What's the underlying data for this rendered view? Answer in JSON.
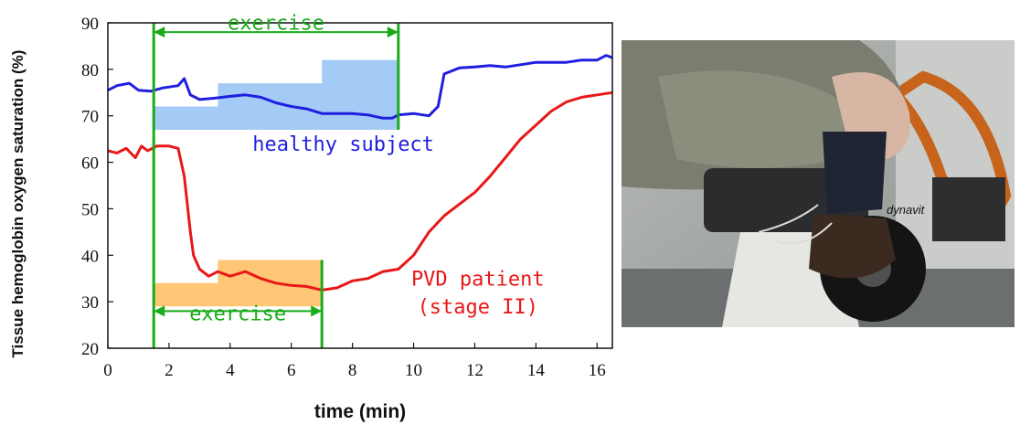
{
  "chart_data": {
    "type": "line",
    "xlabel": "time (min)",
    "ylabel": "Tissue hemoglobin oxygen saturation (%)",
    "xlim": [
      0,
      16.5
    ],
    "ylim": [
      20,
      90
    ],
    "xticks": [
      0,
      2,
      4,
      6,
      8,
      10,
      12,
      14,
      16
    ],
    "yticks": [
      20,
      30,
      40,
      50,
      60,
      70,
      80,
      90
    ],
    "grid": false,
    "series": [
      {
        "name": "healthy subject",
        "color": "#1f1fe0",
        "x": [
          0,
          0.3,
          0.7,
          1.0,
          1.4,
          1.8,
          2.3,
          2.5,
          2.7,
          3.0,
          3.5,
          4.0,
          4.5,
          5.0,
          5.5,
          6.0,
          6.5,
          7.0,
          7.5,
          8.0,
          8.5,
          9.0,
          9.3,
          9.5,
          10.0,
          10.5,
          10.8,
          11.0,
          11.5,
          12.0,
          12.5,
          13.0,
          13.5,
          14.0,
          14.5,
          15.0,
          15.5,
          16.0,
          16.3,
          16.5
        ],
        "y": [
          75.5,
          76.5,
          77,
          75.5,
          75.3,
          76,
          76.5,
          78,
          74.5,
          73.5,
          73.8,
          74.2,
          74.5,
          74,
          72.8,
          72,
          71.5,
          70.5,
          70.5,
          70.5,
          70.2,
          69.5,
          69.5,
          70.2,
          70.5,
          70,
          72,
          79,
          80.3,
          80.5,
          80.8,
          80.5,
          81,
          81.5,
          81.5,
          81.5,
          82,
          82,
          83,
          82.5
        ]
      },
      {
        "name": "PVD patient (stage II)",
        "color": "#e81818",
        "x": [
          0,
          0.3,
          0.6,
          0.9,
          1.1,
          1.3,
          1.6,
          2.0,
          2.3,
          2.5,
          2.7,
          2.8,
          3.0,
          3.3,
          3.6,
          4.0,
          4.5,
          5.0,
          5.5,
          6.0,
          6.5,
          7.0,
          7.5,
          8.0,
          8.5,
          9.0,
          9.5,
          10.0,
          10.5,
          11.0,
          11.5,
          12.0,
          12.5,
          13.0,
          13.5,
          14.0,
          14.5,
          15.0,
          15.5,
          16.0,
          16.5
        ],
        "y": [
          62.5,
          62,
          63,
          61,
          63.5,
          62.5,
          63.5,
          63.5,
          63,
          57,
          45,
          40,
          37,
          35.5,
          36.5,
          35.5,
          36.5,
          35,
          34,
          33.5,
          33.3,
          32.5,
          33,
          34.5,
          35,
          36.5,
          37,
          40,
          45,
          48.5,
          51,
          53.5,
          57,
          61,
          65,
          68,
          71,
          73,
          74,
          74.5,
          75
        ]
      }
    ],
    "shaded_regions": [
      {
        "color": "#a4cbf6",
        "points": [
          [
            1.5,
            67
          ],
          [
            9.5,
            67
          ],
          [
            9.5,
            82
          ],
          [
            7.0,
            82
          ],
          [
            7.0,
            77
          ],
          [
            3.6,
            77
          ],
          [
            3.6,
            72
          ],
          [
            1.5,
            72
          ]
        ]
      },
      {
        "color": "#ffc675",
        "points": [
          [
            1.5,
            29
          ],
          [
            7.0,
            29
          ],
          [
            7.0,
            39
          ],
          [
            3.6,
            39
          ],
          [
            3.6,
            34
          ],
          [
            1.5,
            34
          ]
        ]
      }
    ],
    "vlines": [
      {
        "x": 1.5,
        "color": "#1aaa1a"
      },
      {
        "x": 9.5,
        "ymin": 67,
        "color": "#1aaa1a"
      },
      {
        "x": 7.0,
        "ymax": 39,
        "color": "#1aaa1a"
      }
    ],
    "arrows": [
      {
        "from": 1.5,
        "to": 9.5,
        "y": 88,
        "color": "#1aaa1a"
      },
      {
        "from": 1.5,
        "to": 7.0,
        "y": 28,
        "color": "#1aaa1a"
      }
    ],
    "annotations": [
      {
        "text": "exercise",
        "x": 5.5,
        "y": 88.5,
        "color": "#1aaa1a"
      },
      {
        "text": "healthy subject",
        "x": 7.7,
        "y": 62.5,
        "color": "#1f1fe0"
      },
      {
        "text": "exercise",
        "x": 4.25,
        "y": 26,
        "color": "#1aaa1a"
      },
      {
        "text": "PVD patient",
        "x": 12.1,
        "y": 33.5,
        "color": "#e81818"
      },
      {
        "text": "(stage II)",
        "x": 12.1,
        "y": 27.5,
        "color": "#e81818"
      }
    ]
  },
  "photo": {
    "alt_icon": "exercise-bike-photo"
  }
}
